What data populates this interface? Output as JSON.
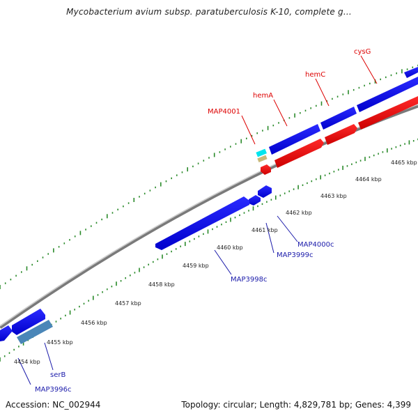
{
  "title": "Mycobacterium avium subsp. paratuberculosis K-10, complete g...",
  "footer": {
    "accession": "Accession: NC_002944",
    "summary": "Topology: circular; Length: 4,829,781 bp; Genes: 4,399"
  },
  "colors": {
    "forward_gene": "#0000ee",
    "reverse_gene": "#ee0000",
    "other_gene": "#4a86b8",
    "cyan_gene": "#00e5ee",
    "tan_gene": "#c8b878",
    "backbone": "#888888",
    "tick": "#2a8a2a",
    "blue_label": "#1a1aaa",
    "red_label": "#dd0000"
  },
  "scale_labels": [
    "4454 kbp",
    "4455 kbp",
    "4456 kbp",
    "4457 kbp",
    "4458 kbp",
    "4459 kbp",
    "4460 kbp",
    "4461 kbp",
    "4462 kbp",
    "4463 kbp",
    "4464 kbp",
    "4465 kbp"
  ],
  "gene_labels": {
    "blue": [
      "MAP3996c",
      "serB",
      "MAP3998c",
      "MAP3999c",
      "MAP4000c"
    ],
    "red": [
      "MAP4001",
      "hemA",
      "hemC",
      "cysG"
    ]
  }
}
